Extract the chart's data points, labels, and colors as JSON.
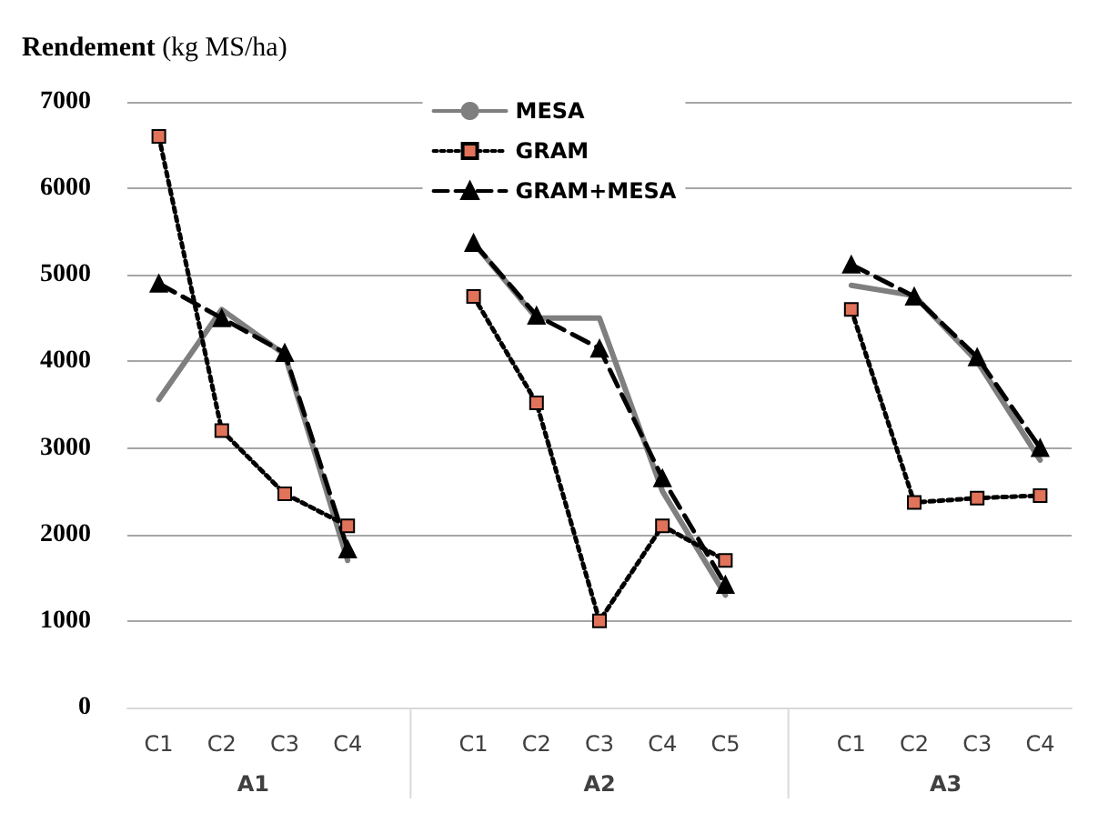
{
  "chart_data": {
    "type": "line",
    "ylabel": "Rendement (kg MS/ha)",
    "categories": [
      "C1",
      "C2",
      "C3",
      "C4",
      null,
      "C1",
      "C2",
      "C3",
      "C4",
      "C5",
      null,
      "C1",
      "C2",
      "C3",
      "C4"
    ],
    "series": [
      {
        "name": "MESA",
        "color": "#7f7f7f",
        "marker": "none",
        "line_style": "solid",
        "values": [
          3560,
          4600,
          4080,
          1700,
          null,
          5370,
          4500,
          4500,
          2500,
          1300,
          null,
          4880,
          4760,
          4000,
          2860
        ]
      },
      {
        "name": "GRAM",
        "color": "#000000",
        "marker": "square",
        "line_style": "dotted",
        "values": [
          6600,
          3200,
          2470,
          2100,
          null,
          4750,
          3520,
          1000,
          2100,
          1700,
          null,
          4600,
          2370,
          2420,
          2450
        ]
      },
      {
        "name": "GRAM+MESA",
        "color": "#000000",
        "marker": "triangle",
        "line_style": "dashed",
        "values": [
          4900,
          4500,
          4100,
          1830,
          null,
          5370,
          4530,
          4150,
          2650,
          1420,
          null,
          5120,
          4750,
          4050,
          3000
        ]
      }
    ],
    "annotations": [
      "A1",
      "A2",
      "A3"
    ],
    "ylim": [
      0,
      7000
    ],
    "yticks": [
      0,
      1000,
      2000,
      3000,
      4000,
      5000,
      6000,
      7000
    ],
    "grid": "y",
    "legend": "top"
  }
}
